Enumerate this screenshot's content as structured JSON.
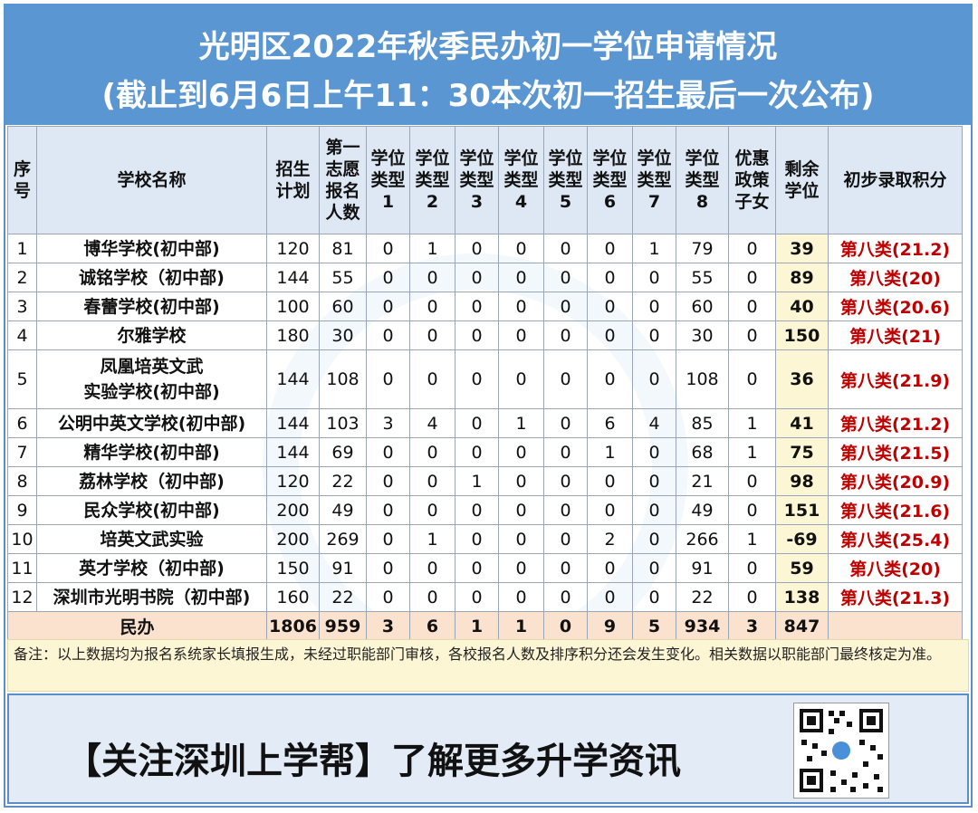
{
  "title": {
    "line1": "光明区2022年秋季民办初一学位申请情况",
    "line2": "(截止到6月6日上午11：30本次初一招生最后一次公布)"
  },
  "table": {
    "headers": {
      "seq": [
        "序",
        "号"
      ],
      "school": "学校名称",
      "plan": [
        "招生",
        "计划"
      ],
      "first_choice": [
        "第一",
        "志愿",
        "报名",
        "人数"
      ],
      "types": [
        [
          "学位",
          "类型",
          "1"
        ],
        [
          "学位",
          "类型",
          "2"
        ],
        [
          "学位",
          "类型",
          "3"
        ],
        [
          "学位",
          "类型",
          "4"
        ],
        [
          "学位",
          "类型",
          "5"
        ],
        [
          "学位",
          "类型",
          "6"
        ],
        [
          "学位",
          "类型",
          "7"
        ],
        [
          "学位",
          "类型",
          "8"
        ]
      ],
      "policy": [
        "优惠",
        "政策",
        "子女"
      ],
      "remaining": [
        "剩余",
        "学位"
      ],
      "score": "初步录取积分"
    },
    "rows": [
      {
        "seq": "1",
        "name": [
          "博华学校(初中部)"
        ],
        "plan": "120",
        "first": "81",
        "t": [
          "0",
          "1",
          "0",
          "0",
          "0",
          "0",
          "1",
          "79"
        ],
        "policy": "0",
        "remaining": "39",
        "score": "第八类(21.2)"
      },
      {
        "seq": "2",
        "name": [
          "诚铭学校（初中部)"
        ],
        "plan": "144",
        "first": "55",
        "t": [
          "0",
          "0",
          "0",
          "0",
          "0",
          "0",
          "0",
          "55"
        ],
        "policy": "0",
        "remaining": "89",
        "score": "第八类(20)"
      },
      {
        "seq": "3",
        "name": [
          "春蕾学校(初中部)"
        ],
        "plan": "100",
        "first": "60",
        "t": [
          "0",
          "0",
          "0",
          "0",
          "0",
          "0",
          "0",
          "60"
        ],
        "policy": "0",
        "remaining": "40",
        "score": "第八类(20.6)"
      },
      {
        "seq": "4",
        "name": [
          "尔雅学校"
        ],
        "plan": "180",
        "first": "30",
        "t": [
          "0",
          "0",
          "0",
          "0",
          "0",
          "0",
          "0",
          "30"
        ],
        "policy": "0",
        "remaining": "150",
        "score": "第八类(21)"
      },
      {
        "seq": "5",
        "name": [
          "凤凰培英文武",
          "实验学校(初中部)"
        ],
        "plan": "144",
        "first": "108",
        "t": [
          "0",
          "0",
          "0",
          "0",
          "0",
          "0",
          "0",
          "108"
        ],
        "policy": "0",
        "remaining": "36",
        "score": "第八类(21.9)"
      },
      {
        "seq": "6",
        "name": [
          "公明中英文学校(初中部)"
        ],
        "plan": "144",
        "first": "103",
        "t": [
          "3",
          "4",
          "0",
          "1",
          "0",
          "6",
          "4",
          "85"
        ],
        "policy": "1",
        "remaining": "41",
        "score": "第八类(21.2)"
      },
      {
        "seq": "7",
        "name": [
          "精华学校(初中部)"
        ],
        "plan": "144",
        "first": "69",
        "t": [
          "0",
          "0",
          "0",
          "0",
          "0",
          "1",
          "0",
          "68"
        ],
        "policy": "1",
        "remaining": "75",
        "score": "第八类(21.5)"
      },
      {
        "seq": "8",
        "name": [
          "荔林学校（初中部)"
        ],
        "plan": "120",
        "first": "22",
        "t": [
          "0",
          "0",
          "1",
          "0",
          "0",
          "0",
          "0",
          "21"
        ],
        "policy": "0",
        "remaining": "98",
        "score": "第八类(20.9)"
      },
      {
        "seq": "9",
        "name": [
          "民众学校(初中部)"
        ],
        "plan": "200",
        "first": "49",
        "t": [
          "0",
          "0",
          "0",
          "0",
          "0",
          "0",
          "0",
          "49"
        ],
        "policy": "0",
        "remaining": "151",
        "score": "第八类(21.6)"
      },
      {
        "seq": "10",
        "name": [
          "培英文武实验"
        ],
        "plan": "200",
        "first": "269",
        "t": [
          "0",
          "1",
          "0",
          "0",
          "0",
          "2",
          "0",
          "266"
        ],
        "policy": "1",
        "remaining": "-69",
        "score": "第八类(25.4)"
      },
      {
        "seq": "11",
        "name": [
          "英才学校（初中部)"
        ],
        "plan": "150",
        "first": "91",
        "t": [
          "0",
          "0",
          "0",
          "0",
          "0",
          "0",
          "0",
          "91"
        ],
        "policy": "0",
        "remaining": "59",
        "score": "第八类(20)"
      },
      {
        "seq": "12",
        "name": [
          "深圳市光明书院（初中部)"
        ],
        "plan": "160",
        "first": "22",
        "t": [
          "0",
          "0",
          "0",
          "0",
          "0",
          "0",
          "0",
          "22"
        ],
        "policy": "0",
        "remaining": "138",
        "score": "第八类(21.3)"
      }
    ],
    "total": {
      "label": "民办",
      "plan": "1806",
      "first": "959",
      "t": [
        "3",
        "6",
        "1",
        "1",
        "0",
        "9",
        "5",
        "934"
      ],
      "policy": "3",
      "remaining": "847",
      "score": ""
    }
  },
  "note": "备注：以上数据均为报名系统家长填报生成，未经过职能部门审核，各校报名人数及排序积分还会发生变化。相关数据以职能部门最终核定为准。",
  "footer": {
    "slogan": "【关注深圳上学帮】了解更多升学资讯",
    "qr_icon": "qr-code-icon"
  }
}
